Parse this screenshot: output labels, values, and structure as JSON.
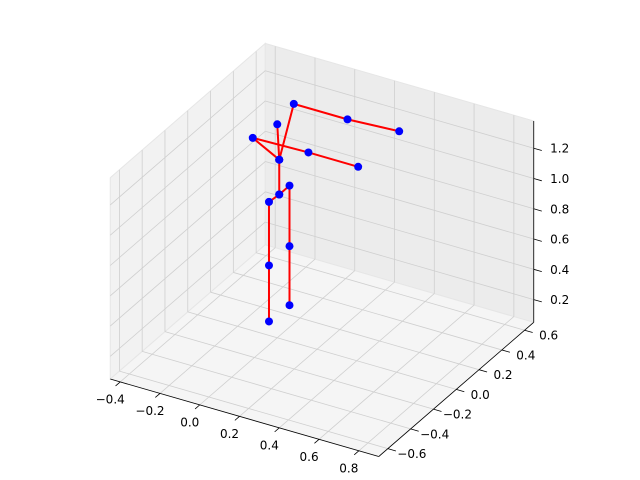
{
  "chart_data": {
    "type": "line3d",
    "xlim": [
      -0.45,
      0.9
    ],
    "ylim": [
      -0.68,
      0.68
    ],
    "zlim": [
      0.05,
      1.38
    ],
    "xticks": [
      {
        "value": -0.4,
        "label": "−0.4"
      },
      {
        "value": -0.2,
        "label": "−0.2"
      },
      {
        "value": 0,
        "label": "0.0"
      },
      0.2,
      0.4,
      0.6,
      0.8
    ],
    "yticks": [
      {
        "value": -0.6,
        "label": "−0.6"
      },
      {
        "value": -0.4,
        "label": "−0.4"
      },
      {
        "value": -0.2,
        "label": "−0.2"
      },
      {
        "value": 0,
        "label": "0.0"
      },
      0.2,
      0.4,
      0.6
    ],
    "zticks": [
      0.2,
      0.4,
      0.6,
      0.8,
      {
        "value": 1,
        "label": "1.0"
      },
      1.2
    ],
    "grid": true,
    "line_color": "#ff0000",
    "marker_color": "#0000ff",
    "series": [
      {
        "x": [
          0.01,
          0.01,
          0.01,
          0.01,
          0.01,
          0.01,
          0.01
        ],
        "y": [
          -0.09,
          -0.09,
          -0.09,
          0,
          0.09,
          0.09,
          0.09
        ],
        "z": [
          0.22,
          0.59,
          1.01,
          1.0,
          1.0,
          0.6,
          0.21
        ]
      },
      {
        "x": [
          0.01,
          0.01,
          0.0
        ],
        "y": [
          0,
          0,
          0
        ],
        "z": [
          1.0,
          1.23,
          1.46
        ]
      },
      {
        "x": [
          0.01,
          -0.02,
          0.26,
          0.51
        ],
        "y": [
          0,
          -0.18,
          -0.18,
          -0.18
        ],
        "z": [
          1.23,
          1.48,
          1.49,
          1.49
        ]
      },
      {
        "x": [
          0.01,
          -0.02,
          0.25,
          0.51
        ],
        "y": [
          0,
          0.18,
          0.18,
          0.18
        ],
        "z": [
          1.23,
          1.47,
          1.47,
          1.49
        ]
      }
    ]
  }
}
